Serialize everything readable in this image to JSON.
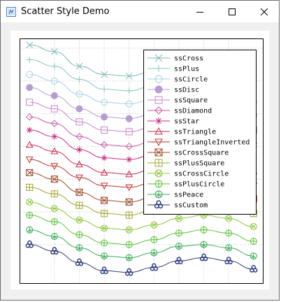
{
  "window": {
    "title": "Scatter Style Demo",
    "controls": {
      "minimize": "minimize",
      "maximize": "maximize",
      "close": "close"
    }
  },
  "chart_data": {
    "type": "line",
    "grid": true,
    "legend_position": "top-right",
    "x": [
      0,
      1,
      2,
      3,
      4,
      5,
      6,
      7,
      8,
      9
    ],
    "series": [
      {
        "name": "ssCross",
        "color": "#7fb6b6",
        "values": [
          16.2,
          15.8,
          14.9,
          14.4,
          14.3,
          14.6,
          15.0,
          15.2,
          15.0,
          14.5
        ]
      },
      {
        "name": "ssPlus",
        "color": "#8cc3c3",
        "values": [
          15.3,
          14.9,
          14.1,
          13.5,
          13.4,
          13.7,
          14.1,
          14.3,
          14.1,
          13.6
        ]
      },
      {
        "name": "ssCircle",
        "color": "#a6cfe0",
        "values": [
          14.4,
          14.0,
          13.2,
          12.7,
          12.6,
          12.9,
          13.3,
          13.4,
          13.2,
          12.7
        ]
      },
      {
        "name": "ssDisc",
        "color": "#b79ccf",
        "values": [
          13.6,
          13.1,
          12.3,
          11.8,
          11.7,
          12.0,
          12.4,
          12.6,
          12.4,
          11.9
        ]
      },
      {
        "name": "ssSquare",
        "color": "#c784c9",
        "values": [
          12.7,
          12.3,
          11.5,
          11.0,
          10.9,
          11.2,
          11.6,
          11.8,
          11.5,
          11.0
        ]
      },
      {
        "name": "ssDiamond",
        "color": "#c95aa6",
        "values": [
          11.8,
          11.4,
          10.6,
          10.1,
          10.0,
          10.3,
          10.7,
          10.9,
          10.7,
          10.2
        ]
      },
      {
        "name": "ssStar",
        "color": "#c52c82",
        "values": [
          11.0,
          10.6,
          9.8,
          9.3,
          9.2,
          9.5,
          9.9,
          10.1,
          9.8,
          9.3
        ]
      },
      {
        "name": "ssTriangle",
        "color": "#c6284a",
        "values": [
          10.1,
          9.7,
          8.9,
          8.4,
          8.3,
          8.6,
          9.0,
          9.2,
          9.0,
          8.5
        ]
      },
      {
        "name": "ssTriangleInverted",
        "color": "#b7352f",
        "values": [
          9.2,
          8.8,
          8.1,
          7.6,
          7.5,
          7.8,
          8.2,
          8.3,
          8.1,
          7.6
        ]
      },
      {
        "name": "ssCrossSquare",
        "color": "#9c4a2a",
        "values": [
          8.4,
          8.0,
          7.2,
          6.7,
          6.6,
          6.9,
          7.3,
          7.5,
          7.3,
          6.8
        ]
      },
      {
        "name": "ssPlusSquare",
        "color": "#a3a336",
        "values": [
          7.5,
          7.1,
          6.4,
          5.9,
          5.8,
          6.1,
          6.5,
          6.6,
          6.4,
          5.9
        ]
      },
      {
        "name": "ssCrossCircle",
        "color": "#8cc33a",
        "values": [
          6.6,
          6.2,
          5.5,
          5.0,
          4.9,
          5.2,
          5.6,
          5.8,
          5.6,
          5.1
        ]
      },
      {
        "name": "ssPlusCircle",
        "color": "#5cbf3a",
        "values": [
          5.8,
          5.4,
          4.6,
          4.1,
          4.0,
          4.3,
          4.7,
          4.9,
          4.7,
          4.2
        ]
      },
      {
        "name": "ssPeace",
        "color": "#3aa85a",
        "values": [
          4.9,
          4.5,
          3.8,
          3.3,
          3.2,
          3.5,
          3.9,
          4.0,
          3.8,
          3.3
        ]
      },
      {
        "name": "ssCustom",
        "color": "#2d3a7a",
        "values": [
          4.0,
          3.6,
          2.9,
          2.4,
          2.3,
          2.6,
          3.0,
          3.2,
          3.0,
          2.5
        ]
      }
    ]
  }
}
